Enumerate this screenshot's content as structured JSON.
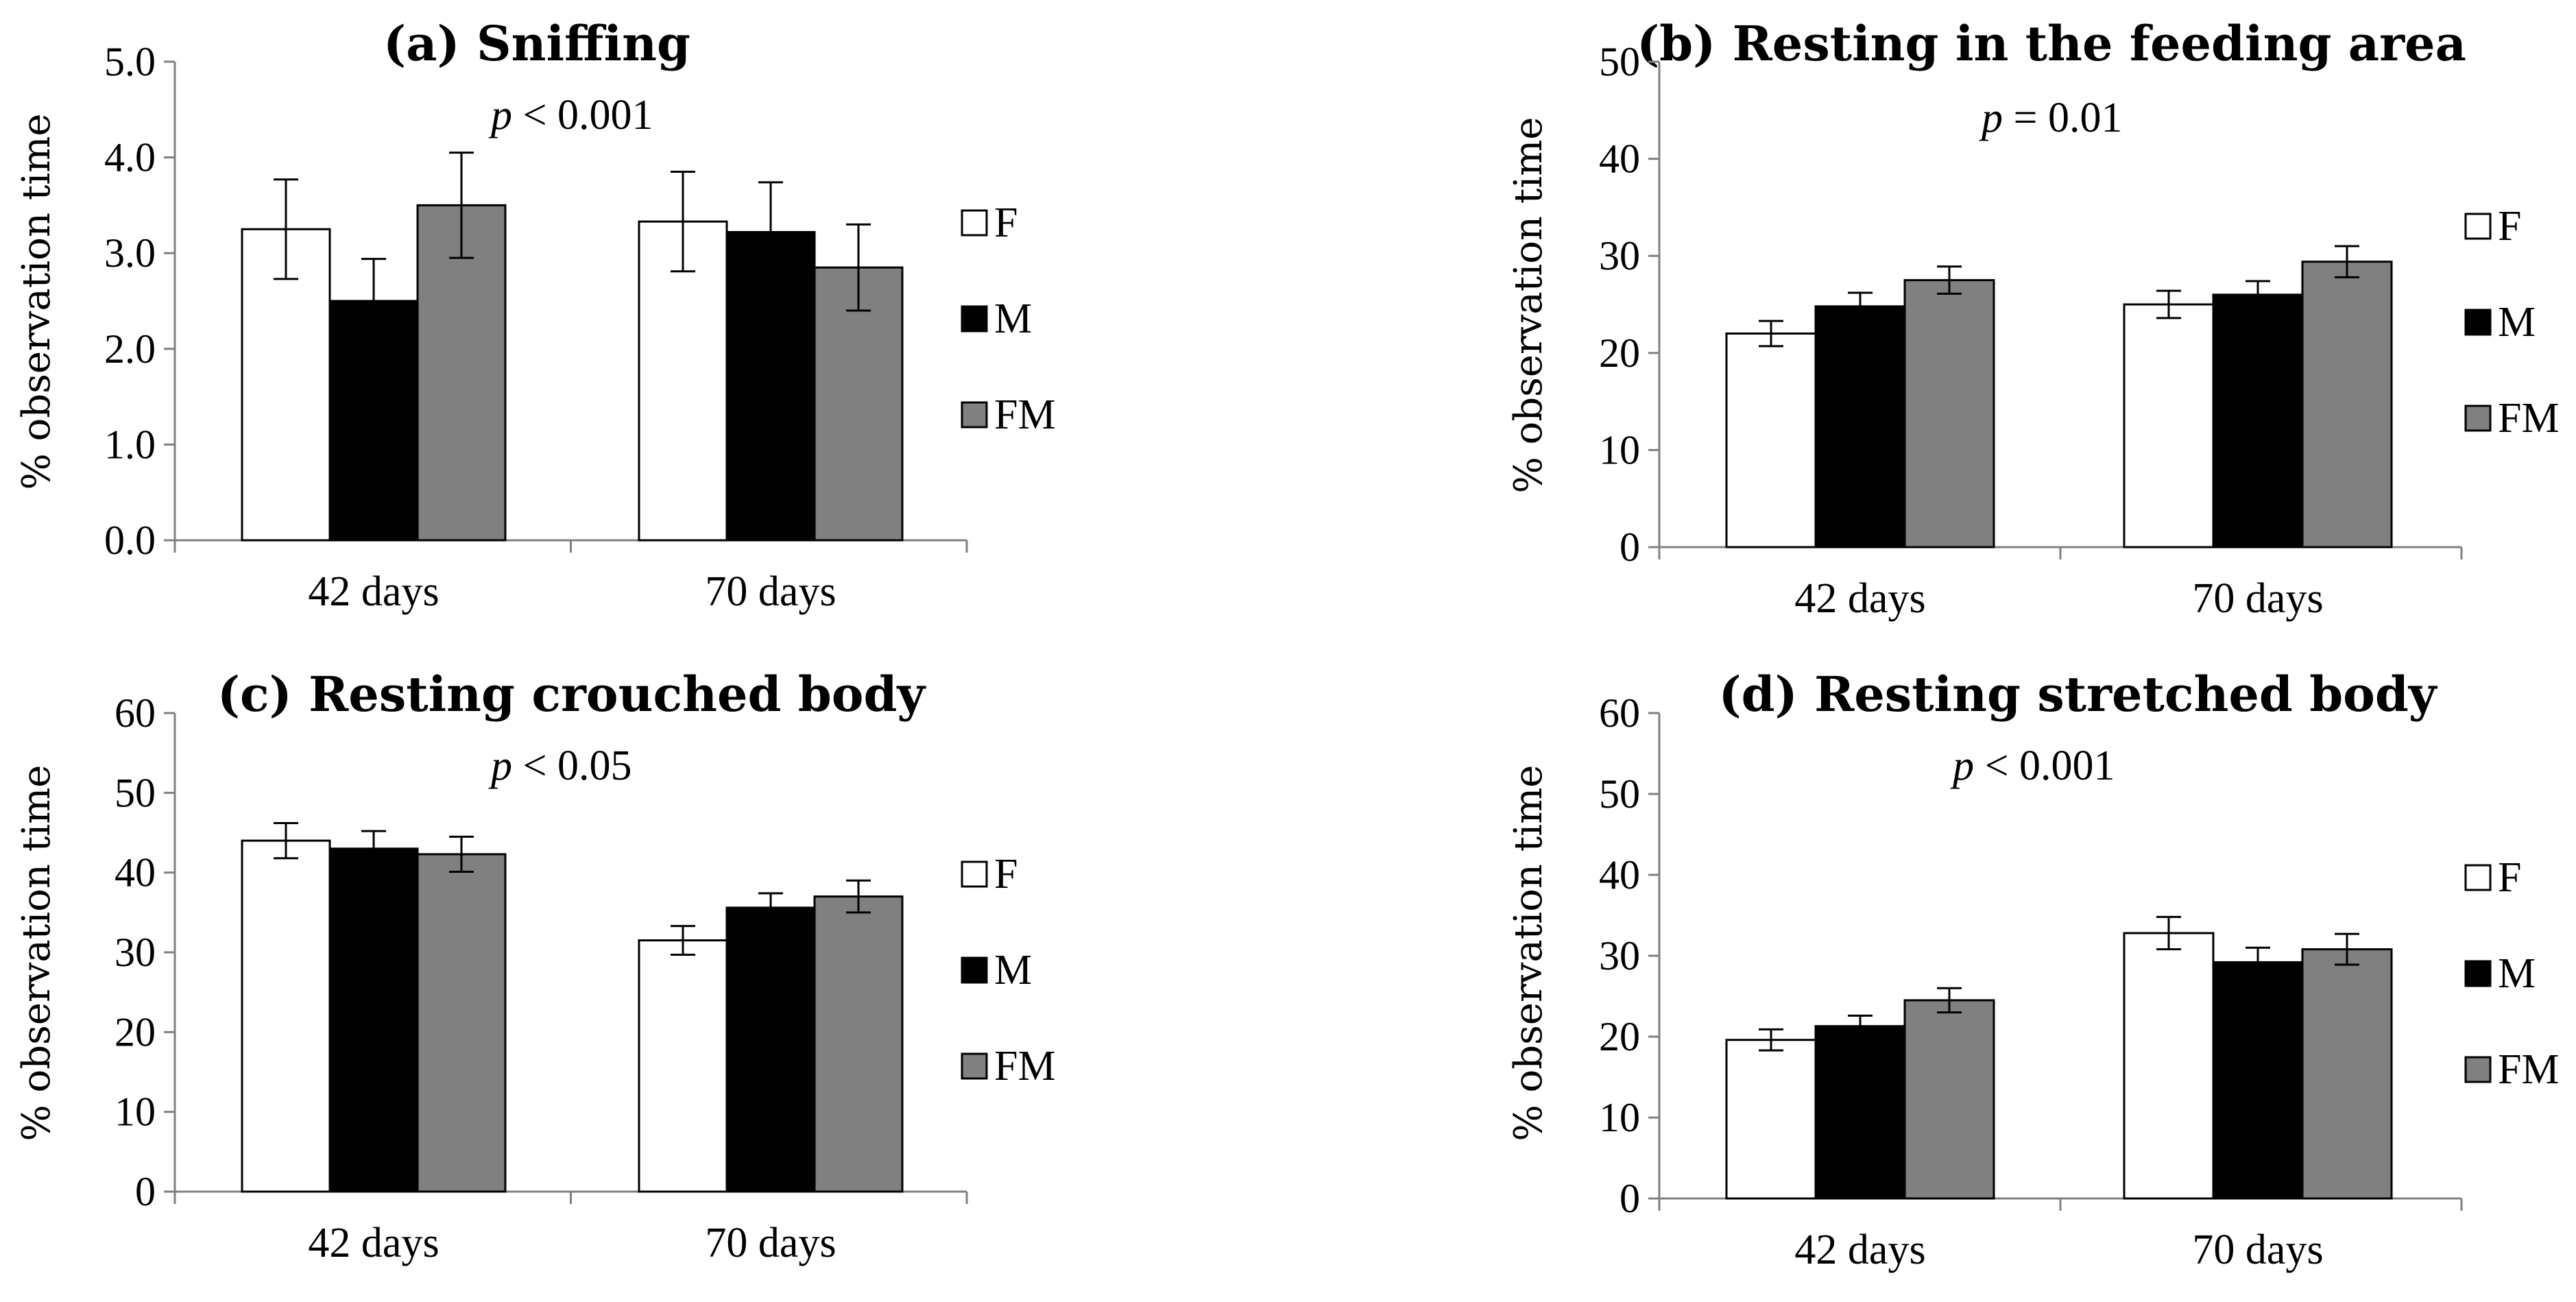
{
  "legend_labels": [
    "F",
    "M",
    "FM"
  ],
  "series_colors": {
    "F": "#ffffff",
    "M": "#000000",
    "FM": "#808080"
  },
  "chart_data": [
    {
      "type": "bar",
      "title": "(a) Sniffing",
      "p_prefix": "p",
      "p_suffix": " < 0.001",
      "ylabel": "% observation time",
      "categories": [
        "42 days",
        "70 days"
      ],
      "ylim": [
        0,
        5
      ],
      "yticks": [
        "0.0",
        "1.0",
        "2.0",
        "3.0",
        "4.0",
        "5.0"
      ],
      "series": [
        {
          "name": "F",
          "values": [
            3.25,
            3.33
          ],
          "errors": [
            0.52,
            0.52
          ]
        },
        {
          "name": "M",
          "values": [
            2.5,
            3.22
          ],
          "errors": [
            0.44,
            0.52
          ]
        },
        {
          "name": "FM",
          "values": [
            3.5,
            2.85
          ],
          "errors": [
            0.55,
            0.45
          ]
        }
      ],
      "legend": "right"
    },
    {
      "type": "bar",
      "title": "(b) Resting in the feeding area",
      "p_prefix": "p",
      "p_suffix": " = 0.01",
      "ylabel": "% observation time",
      "categories": [
        "42 days",
        "70 days"
      ],
      "ylim": [
        0,
        50
      ],
      "yticks": [
        "0",
        "10",
        "20",
        "30",
        "40",
        "50"
      ],
      "series": [
        {
          "name": "F",
          "values": [
            22,
            25
          ],
          "errors": [
            1.3,
            1.4
          ]
        },
        {
          "name": "M",
          "values": [
            24.8,
            26
          ],
          "errors": [
            1.4,
            1.4
          ]
        },
        {
          "name": "FM",
          "values": [
            27.5,
            29.4
          ],
          "errors": [
            1.4,
            1.6
          ]
        }
      ],
      "legend": "right"
    },
    {
      "type": "bar",
      "title": "(c) Resting crouched body",
      "p_prefix": "p",
      "p_suffix": " < 0.05",
      "ylabel": "% observation time",
      "categories": [
        "42 days",
        "70 days"
      ],
      "ylim": [
        0,
        60
      ],
      "yticks": [
        "0",
        "10",
        "20",
        "30",
        "40",
        "50",
        "60"
      ],
      "series": [
        {
          "name": "F",
          "values": [
            44,
            31.5
          ],
          "errors": [
            2.2,
            1.8
          ]
        },
        {
          "name": "M",
          "values": [
            43,
            35.6
          ],
          "errors": [
            2.2,
            1.8
          ]
        },
        {
          "name": "FM",
          "values": [
            42.3,
            37
          ],
          "errors": [
            2.2,
            2
          ]
        }
      ],
      "legend": "right"
    },
    {
      "type": "bar",
      "title": "(d) Resting stretched body",
      "p_prefix": "p",
      "p_suffix": " < 0.001",
      "ylabel": "% observation time",
      "categories": [
        "42 days",
        "70 days"
      ],
      "ylim": [
        0,
        60
      ],
      "yticks": [
        "0",
        "10",
        "20",
        "30",
        "40",
        "50",
        "60"
      ],
      "series": [
        {
          "name": "F",
          "values": [
            19.6,
            32.8
          ],
          "errors": [
            1.3,
            2
          ]
        },
        {
          "name": "M",
          "values": [
            21.3,
            29.2
          ],
          "errors": [
            1.3,
            1.8
          ]
        },
        {
          "name": "FM",
          "values": [
            24.5,
            30.8
          ],
          "errors": [
            1.5,
            1.9
          ]
        }
      ],
      "legend": "right"
    }
  ]
}
